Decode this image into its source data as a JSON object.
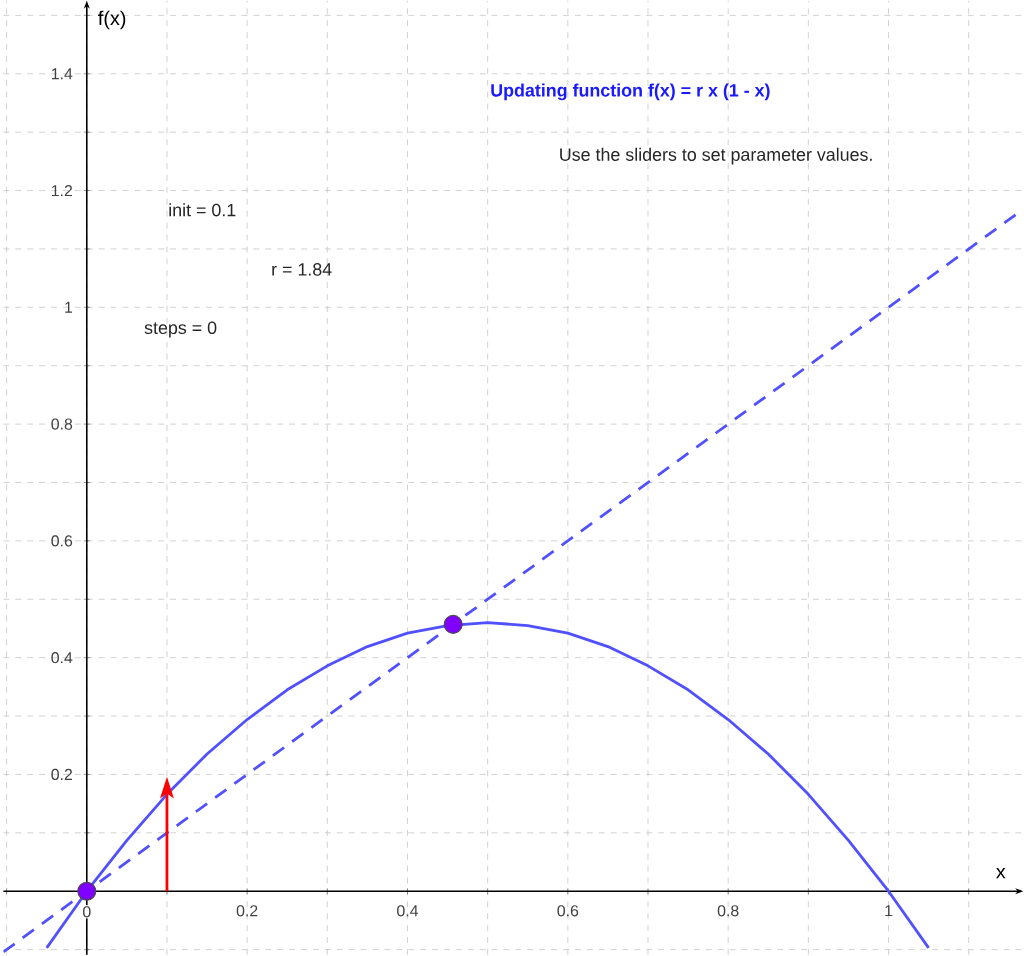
{
  "chart_data": {
    "type": "line",
    "title": "Updating function f(x) = r x (1 - x)",
    "subtitle": "Use the sliders to set parameter values.",
    "xlabel": "x",
    "ylabel": "f(x)",
    "annotations": [
      "init = 0.1",
      "r = 1.84",
      "steps = 0"
    ],
    "xlim": [
      -0.104,
      1.168
    ],
    "ylim": [
      -0.109,
      1.525
    ],
    "xticks": [
      {
        "value": -0.1,
        "label": null
      },
      0,
      {
        "value": 0.1,
        "label": null
      },
      0.2,
      {
        "value": 0.3,
        "label": null
      },
      0.4,
      {
        "value": 0.5,
        "label": null
      },
      0.6,
      {
        "value": 0.7,
        "label": null
      },
      0.8,
      {
        "value": 0.9,
        "label": null
      },
      1,
      {
        "value": 1.1,
        "label": null
      }
    ],
    "yticks": [
      {
        "value": -0.1,
        "label": null
      },
      {
        "value": 0.1,
        "label": null
      },
      0.2,
      {
        "value": 0.3,
        "label": null
      },
      0.4,
      {
        "value": 0.5,
        "label": null
      },
      0.6,
      {
        "value": 0.7,
        "label": null
      },
      0.8,
      {
        "value": 0.9,
        "label": null
      },
      1,
      {
        "value": 1.1,
        "label": null
      },
      1.2,
      {
        "value": 1.3,
        "label": null
      },
      1.4,
      {
        "value": 1.5,
        "label": null
      }
    ],
    "grid": true,
    "series": [
      {
        "color": "#5050ff",
        "x": [
          -0.05,
          0,
          0.05,
          0.1,
          0.15,
          0.2,
          0.25,
          0.3,
          0.35,
          0.4,
          0.45,
          0.5,
          0.55,
          0.6,
          0.65,
          0.7,
          0.75,
          0.8,
          0.85,
          0.9,
          0.95,
          1,
          1.05
        ],
        "values": [
          -0.097,
          0,
          0.087,
          0.166,
          0.235,
          0.294,
          0.345,
          0.386,
          0.419,
          0.442,
          0.455,
          0.46,
          0.455,
          0.442,
          0.419,
          0.386,
          0.345,
          0.294,
          0.235,
          0.166,
          0.087,
          0,
          -0.097
        ]
      },
      {
        "line_style": "dashed",
        "color": "#5050ff",
        "x": [
          -0.104,
          1.168
        ],
        "values": [
          -0.104,
          1.168
        ]
      },
      {
        "type": "scatter",
        "marker": "circle",
        "color": "#8000ff",
        "x": [
          0,
          0.457
        ],
        "values": [
          0,
          0.457
        ]
      },
      {
        "color": "#ff0000",
        "x": [
          0.1,
          0.1
        ],
        "values": [
          0,
          0.166
        ]
      }
    ]
  }
}
